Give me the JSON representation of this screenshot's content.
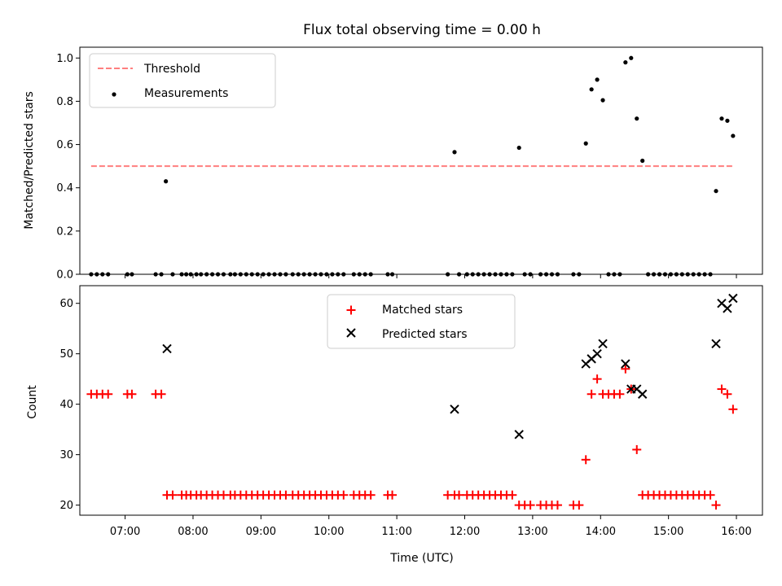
{
  "chart_data": [
    {
      "type": "scatter",
      "title": "Flux total observing time = 0.00 h",
      "xlabel": "",
      "ylabel": "Matched/Predicted stars",
      "xlim": [
        "06:20",
        "16:23"
      ],
      "ylim": [
        0,
        1.05
      ],
      "yticks": [
        "0.0",
        "0.2",
        "0.4",
        "0.6",
        "0.8",
        "1.0"
      ],
      "legend_position": "top-left",
      "threshold": {
        "name": "Threshold",
        "value": 0.5,
        "x_start": "06:30",
        "x_end": "15:57",
        "color": "#ff7f7f",
        "style": "dashed"
      },
      "series": [
        {
          "name": "Measurements",
          "color": "#000000",
          "marker": "dot",
          "points": [
            [
              "06:30",
              0
            ],
            [
              "06:35",
              0
            ],
            [
              "06:40",
              0
            ],
            [
              "06:45",
              0
            ],
            [
              "07:02",
              0
            ],
            [
              "07:06",
              0
            ],
            [
              "07:27",
              0
            ],
            [
              "07:32",
              0
            ],
            [
              "07:36",
              0.43
            ],
            [
              "07:42",
              0
            ],
            [
              "07:50",
              0
            ],
            [
              "07:54",
              0
            ],
            [
              "07:58",
              0
            ],
            [
              "08:03",
              0
            ],
            [
              "08:07",
              0
            ],
            [
              "08:12",
              0
            ],
            [
              "08:17",
              0
            ],
            [
              "08:22",
              0
            ],
            [
              "08:27",
              0
            ],
            [
              "08:33",
              0
            ],
            [
              "08:37",
              0
            ],
            [
              "08:42",
              0
            ],
            [
              "08:47",
              0
            ],
            [
              "08:52",
              0
            ],
            [
              "08:57",
              0
            ],
            [
              "09:02",
              0
            ],
            [
              "09:07",
              0
            ],
            [
              "09:12",
              0
            ],
            [
              "09:17",
              0
            ],
            [
              "09:22",
              0
            ],
            [
              "09:28",
              0
            ],
            [
              "09:33",
              0
            ],
            [
              "09:38",
              0
            ],
            [
              "09:43",
              0
            ],
            [
              "09:48",
              0
            ],
            [
              "09:53",
              0
            ],
            [
              "09:58",
              0
            ],
            [
              "10:03",
              0
            ],
            [
              "10:08",
              0
            ],
            [
              "10:13",
              0
            ],
            [
              "10:22",
              0
            ],
            [
              "10:27",
              0
            ],
            [
              "10:32",
              0
            ],
            [
              "10:37",
              0
            ],
            [
              "10:52",
              0
            ],
            [
              "10:56",
              0
            ],
            [
              "11:45",
              0
            ],
            [
              "11:51",
              0.565
            ],
            [
              "11:55",
              0
            ],
            [
              "12:02",
              0
            ],
            [
              "12:07",
              0
            ],
            [
              "12:12",
              0
            ],
            [
              "12:17",
              0
            ],
            [
              "12:22",
              0
            ],
            [
              "12:27",
              0
            ],
            [
              "12:32",
              0
            ],
            [
              "12:37",
              0
            ],
            [
              "12:42",
              0
            ],
            [
              "12:48",
              0.585
            ],
            [
              "12:53",
              0
            ],
            [
              "12:58",
              0
            ],
            [
              "13:07",
              0
            ],
            [
              "13:12",
              0
            ],
            [
              "13:17",
              0
            ],
            [
              "13:22",
              0
            ],
            [
              "13:36",
              0
            ],
            [
              "13:41",
              0
            ],
            [
              "13:47",
              0.605
            ],
            [
              "13:52",
              0.855
            ],
            [
              "13:57",
              0.9
            ],
            [
              "14:02",
              0.805
            ],
            [
              "14:07",
              0
            ],
            [
              "14:12",
              0
            ],
            [
              "14:17",
              0
            ],
            [
              "14:22",
              0.98
            ],
            [
              "14:27",
              1.0
            ],
            [
              "14:32",
              0.72
            ],
            [
              "14:37",
              0.525
            ],
            [
              "14:42",
              0
            ],
            [
              "14:47",
              0
            ],
            [
              "14:52",
              0
            ],
            [
              "14:57",
              0
            ],
            [
              "15:02",
              0
            ],
            [
              "15:07",
              0
            ],
            [
              "15:12",
              0
            ],
            [
              "15:17",
              0
            ],
            [
              "15:22",
              0
            ],
            [
              "15:27",
              0
            ],
            [
              "15:32",
              0
            ],
            [
              "15:37",
              0
            ],
            [
              "15:42",
              0.385
            ],
            [
              "15:47",
              0.72
            ],
            [
              "15:52",
              0.71
            ],
            [
              "15:57",
              0.64
            ]
          ]
        }
      ]
    },
    {
      "type": "scatter",
      "title": "",
      "xlabel": "Time (UTC)",
      "ylabel": "Count",
      "xlim": [
        "06:20",
        "16:23"
      ],
      "ylim": [
        18,
        63.5
      ],
      "yticks": [
        "20",
        "30",
        "40",
        "50",
        "60"
      ],
      "xticks": [
        "07:00",
        "08:00",
        "09:00",
        "10:00",
        "11:00",
        "12:00",
        "13:00",
        "14:00",
        "15:00",
        "16:00"
      ],
      "legend_position": "top-center",
      "series": [
        {
          "name": "Matched stars",
          "color": "#ff0000",
          "marker": "plus",
          "points": [
            [
              "06:30",
              42
            ],
            [
              "06:35",
              42
            ],
            [
              "06:40",
              42
            ],
            [
              "06:45",
              42
            ],
            [
              "07:02",
              42
            ],
            [
              "07:06",
              42
            ],
            [
              "07:27",
              42
            ],
            [
              "07:32",
              42
            ],
            [
              "07:37",
              22
            ],
            [
              "07:42",
              22
            ],
            [
              "07:50",
              22
            ],
            [
              "07:54",
              22
            ],
            [
              "07:58",
              22
            ],
            [
              "08:03",
              22
            ],
            [
              "08:07",
              22
            ],
            [
              "08:12",
              22
            ],
            [
              "08:17",
              22
            ],
            [
              "08:22",
              22
            ],
            [
              "08:27",
              22
            ],
            [
              "08:33",
              22
            ],
            [
              "08:37",
              22
            ],
            [
              "08:42",
              22
            ],
            [
              "08:47",
              22
            ],
            [
              "08:52",
              22
            ],
            [
              "08:57",
              22
            ],
            [
              "09:02",
              22
            ],
            [
              "09:07",
              22
            ],
            [
              "09:12",
              22
            ],
            [
              "09:17",
              22
            ],
            [
              "09:22",
              22
            ],
            [
              "09:28",
              22
            ],
            [
              "09:33",
              22
            ],
            [
              "09:38",
              22
            ],
            [
              "09:43",
              22
            ],
            [
              "09:48",
              22
            ],
            [
              "09:53",
              22
            ],
            [
              "09:58",
              22
            ],
            [
              "10:03",
              22
            ],
            [
              "10:08",
              22
            ],
            [
              "10:13",
              22
            ],
            [
              "10:22",
              22
            ],
            [
              "10:27",
              22
            ],
            [
              "10:32",
              22
            ],
            [
              "10:37",
              22
            ],
            [
              "10:52",
              22
            ],
            [
              "10:56",
              22
            ],
            [
              "11:45",
              22
            ],
            [
              "11:51",
              22
            ],
            [
              "11:55",
              22
            ],
            [
              "12:02",
              22
            ],
            [
              "12:07",
              22
            ],
            [
              "12:12",
              22
            ],
            [
              "12:17",
              22
            ],
            [
              "12:22",
              22
            ],
            [
              "12:27",
              22
            ],
            [
              "12:32",
              22
            ],
            [
              "12:37",
              22
            ],
            [
              "12:42",
              22
            ],
            [
              "12:48",
              20
            ],
            [
              "12:53",
              20
            ],
            [
              "12:58",
              20
            ],
            [
              "13:07",
              20
            ],
            [
              "13:12",
              20
            ],
            [
              "13:17",
              20
            ],
            [
              "13:22",
              20
            ],
            [
              "13:36",
              20
            ],
            [
              "13:41",
              20
            ],
            [
              "13:47",
              29
            ],
            [
              "13:52",
              42
            ],
            [
              "13:57",
              45
            ],
            [
              "14:02",
              42
            ],
            [
              "14:07",
              42
            ],
            [
              "14:12",
              42
            ],
            [
              "14:17",
              42
            ],
            [
              "14:22",
              47
            ],
            [
              "14:27",
              43
            ],
            [
              "14:32",
              31
            ],
            [
              "14:37",
              22
            ],
            [
              "14:42",
              22
            ],
            [
              "14:47",
              22
            ],
            [
              "14:52",
              22
            ],
            [
              "14:57",
              22
            ],
            [
              "15:02",
              22
            ],
            [
              "15:07",
              22
            ],
            [
              "15:12",
              22
            ],
            [
              "15:17",
              22
            ],
            [
              "15:22",
              22
            ],
            [
              "15:27",
              22
            ],
            [
              "15:32",
              22
            ],
            [
              "15:37",
              22
            ],
            [
              "15:42",
              20
            ],
            [
              "15:47",
              43
            ],
            [
              "15:52",
              42
            ],
            [
              "15:57",
              39
            ]
          ]
        },
        {
          "name": "Predicted stars",
          "color": "#000000",
          "marker": "x",
          "points": [
            [
              "07:37",
              51
            ],
            [
              "11:51",
              39
            ],
            [
              "12:48",
              34
            ],
            [
              "13:47",
              48
            ],
            [
              "13:52",
              49
            ],
            [
              "13:57",
              50
            ],
            [
              "14:02",
              52
            ],
            [
              "14:22",
              48
            ],
            [
              "14:27",
              43
            ],
            [
              "14:32",
              43
            ],
            [
              "14:37",
              42
            ],
            [
              "15:42",
              52
            ],
            [
              "15:47",
              60
            ],
            [
              "15:52",
              59
            ],
            [
              "15:57",
              61
            ]
          ]
        }
      ]
    }
  ]
}
